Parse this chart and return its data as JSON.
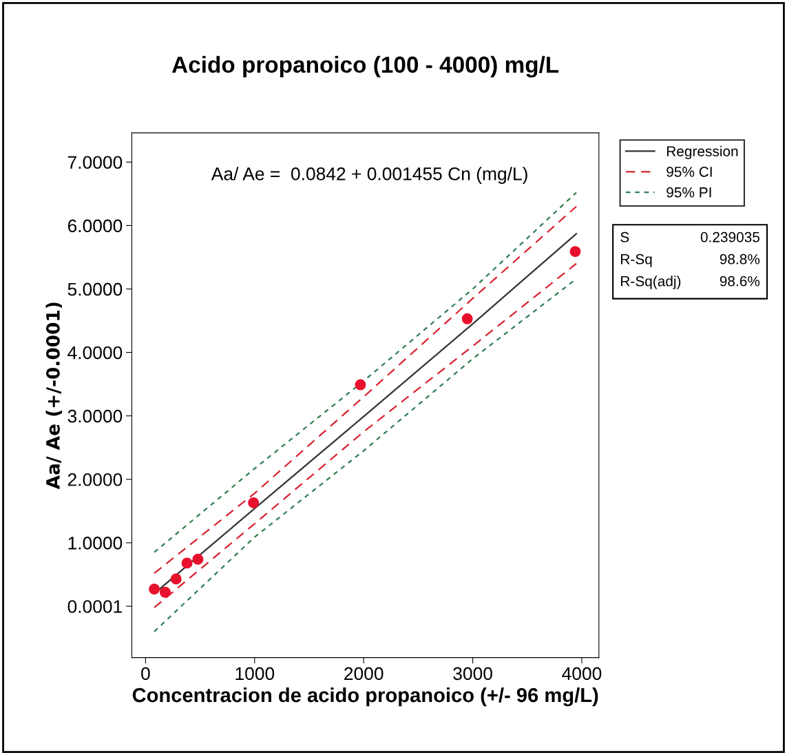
{
  "chart_data": {
    "type": "line",
    "title": "Acido propanoico (100 - 4000) mg/L",
    "xlabel": "Concentracion de acido propanoico (+/- 96 mg/L)",
    "ylabel": "Aa/ Ae (+/-0.0001)",
    "xlim": [
      -126,
      4157
    ],
    "ylim": [
      -0.81,
      7.46
    ],
    "xticks": [
      0,
      1000,
      2000,
      3000,
      4000
    ],
    "yticks": [
      {
        "value": 0.0001,
        "label": "0.0001"
      },
      {
        "value": 1,
        "label": "1.0000"
      },
      {
        "value": 2,
        "label": "2.0000"
      },
      {
        "value": 3,
        "label": "3.0000"
      },
      {
        "value": 4,
        "label": "4.0000"
      },
      {
        "value": 5,
        "label": "5.0000"
      },
      {
        "value": 6,
        "label": "6.0000"
      },
      {
        "value": 7,
        "label": "7.0000"
      }
    ],
    "grid": false,
    "legend": "top right",
    "series": [
      {
        "name": "Regression",
        "color": "#333333",
        "line_style": "solid",
        "x": [
          80,
          1000,
          2000,
          3000,
          3950
        ],
        "values": [
          0.2,
          1.54,
          2.99,
          4.45,
          5.87
        ]
      },
      {
        "name": "95% CI",
        "color": "#d8202e",
        "line_style": "dashed",
        "x": [
          80,
          1000,
          2000,
          3000,
          3950
        ],
        "values": [
          0.52,
          1.78,
          3.3,
          4.85,
          6.3
        ]
      },
      {
        "color": "#d8202e",
        "line_style": "dashed",
        "x": [
          80,
          1000,
          2000,
          3000,
          3950
        ],
        "values": [
          -0.02,
          1.3,
          2.75,
          4.1,
          5.4
        ]
      },
      {
        "name": "95% PI",
        "color": "#2e7d4f",
        "line_style": "dotted",
        "x": [
          80,
          1000,
          2000,
          3000,
          3950
        ],
        "values": [
          0.85,
          2.17,
          3.55,
          5.0,
          6.52
        ]
      },
      {
        "color": "#2e7d4f",
        "line_style": "dotted",
        "x": [
          80,
          1000,
          2000,
          3000,
          3950
        ],
        "values": [
          -0.4,
          1.09,
          2.45,
          3.9,
          5.16
        ]
      },
      {
        "type": "scatter",
        "color": "#e8112d",
        "marker": "circle",
        "x": [
          80,
          180,
          280,
          380,
          480,
          990,
          1970,
          2950,
          3940
        ],
        "values": [
          0.27,
          0.22,
          0.43,
          0.68,
          0.74,
          1.63,
          3.49,
          4.53,
          5.59
        ]
      }
    ],
    "annotations": [
      "Aa/ Ae =  0.0842 + 0.001455 Cn (mg/L)",
      "S",
      "0.239035",
      "R-Sq",
      "98.8%",
      "R-Sq(adj)",
      "98.6%"
    ]
  }
}
